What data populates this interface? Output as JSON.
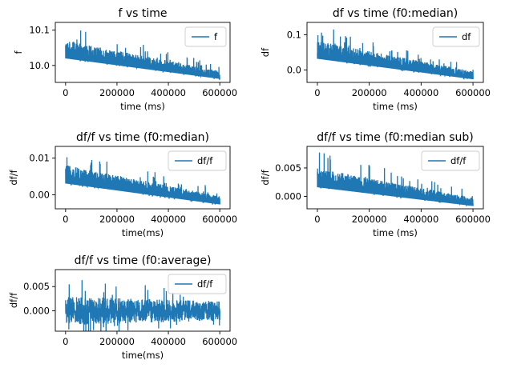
{
  "figure": {
    "line_color": "#1f77b4"
  },
  "chart_data": [
    {
      "type": "line",
      "title": "f  vs time",
      "xlabel": "time (ms)",
      "ylabel": "f",
      "xlim": [
        -40000,
        640000
      ],
      "ylim": [
        9.952,
        10.122
      ],
      "x_ticks": [
        0,
        200000,
        400000,
        600000
      ],
      "x_tick_labels": [
        "0",
        "200000",
        "400000",
        "600000"
      ],
      "y_ticks": [
        10.0,
        10.1
      ],
      "y_tick_labels": [
        "10.0",
        "10.1"
      ],
      "legend": "upper right",
      "series": [
        {
          "name": "f",
          "base_start": 10.02,
          "base_end": 9.962,
          "spike": 0.095,
          "fill_band": 0.05
        }
      ]
    },
    {
      "type": "line",
      "title": "df vs time (f0:median)",
      "xlabel": "time (ms)",
      "ylabel": "df",
      "xlim": [
        -40000,
        640000
      ],
      "ylim": [
        -0.035,
        0.135
      ],
      "x_ticks": [
        0,
        200000,
        400000,
        600000
      ],
      "x_tick_labels": [
        "0",
        "200000",
        "400000",
        "600000"
      ],
      "y_ticks": [
        0.0,
        0.1
      ],
      "y_tick_labels": [
        "0.0",
        "0.1"
      ],
      "legend": "upper right",
      "series": [
        {
          "name": "df",
          "base_start": 0.032,
          "base_end": -0.026,
          "spike": 0.095,
          "fill_band": 0.05
        }
      ]
    },
    {
      "type": "line",
      "title": "df/f vs time (f0:median)",
      "xlabel": "time(ms)",
      "ylabel": "df/f",
      "xlim": [
        -40000,
        640000
      ],
      "ylim": [
        -0.0038,
        0.0132
      ],
      "x_ticks": [
        0,
        200000,
        400000,
        600000
      ],
      "x_tick_labels": [
        "0",
        "200000",
        "400000",
        "600000"
      ],
      "y_ticks": [
        0.0,
        0.01
      ],
      "y_tick_labels": [
        "0.00",
        "0.01"
      ],
      "legend": "upper right",
      "series": [
        {
          "name": "df/f",
          "base_start": 0.0031,
          "base_end": -0.0026,
          "spike": 0.0095,
          "fill_band": 0.005
        }
      ]
    },
    {
      "type": "line",
      "title": "df/f vs time (f0:median sub)",
      "xlabel": "time (ms)",
      "ylabel": "df/f",
      "xlim": [
        -40000,
        640000
      ],
      "ylim": [
        -0.0022,
        0.0088
      ],
      "x_ticks": [
        0,
        200000,
        400000,
        600000
      ],
      "x_tick_labels": [
        "0",
        "200000",
        "400000",
        "600000"
      ],
      "y_ticks": [
        0.0,
        0.005
      ],
      "y_tick_labels": [
        "0.000",
        "0.005"
      ],
      "legend": "upper right",
      "series": [
        {
          "name": "df/f",
          "base_start": 0.0016,
          "base_end": -0.0017,
          "spike": 0.0065,
          "fill_band": 0.0033
        }
      ]
    },
    {
      "type": "line",
      "title": "df/f vs time (f0:average)",
      "xlabel": "time(ms)",
      "ylabel": "df/f",
      "xlim": [
        -40000,
        640000
      ],
      "ylim": [
        -0.0042,
        0.0085
      ],
      "x_ticks": [
        0,
        200000,
        400000,
        600000
      ],
      "x_tick_labels": [
        "0",
        "200000",
        "400000",
        "600000"
      ],
      "y_ticks": [
        0.0,
        0.005
      ],
      "y_tick_labels": [
        "0.000",
        "0.005"
      ],
      "legend": "upper right",
      "series": [
        {
          "name": "df/f",
          "base_start": 0.0,
          "base_end": 0.0,
          "spike": 0.0075,
          "fill_band": 0.003,
          "centered": true
        }
      ]
    }
  ]
}
